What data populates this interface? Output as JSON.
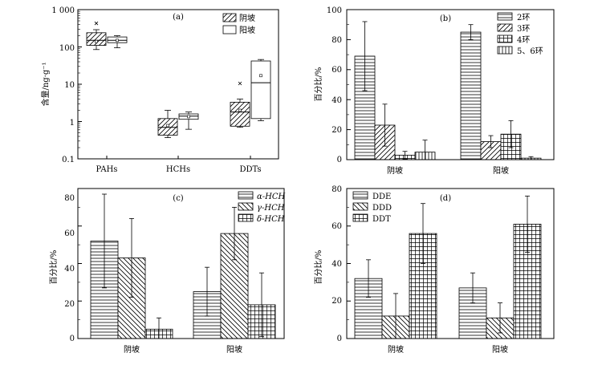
{
  "chart_data": [
    {
      "id": "a",
      "panel_label": "(a)",
      "type": "box",
      "ylabel": "含量/ng·g⁻¹",
      "yscale": "log",
      "ylim": [
        0.1,
        1000
      ],
      "yticks": [
        "1 000",
        "100",
        "10",
        "1",
        "0.1"
      ],
      "categories": [
        "PAHs",
        "HCHs",
        "DDTs"
      ],
      "legend": [
        "阴坡",
        "阳坡"
      ],
      "legend_position": "top-right",
      "series": [
        {
          "name": "阴坡",
          "boxes": [
            {
              "whisker_low": 85,
              "q1": 110,
              "median": 150,
              "q3": 240,
              "whisker_high": 290,
              "mean": 140,
              "outliers": [
                430
              ]
            },
            {
              "whisker_low": 0.37,
              "q1": 0.43,
              "median": 0.7,
              "q3": 1.2,
              "whisker_high": 2.0,
              "mean": 0.78,
              "outliers": []
            },
            {
              "whisker_low": 0.7,
              "q1": 0.75,
              "median": 1.8,
              "q3": 3.3,
              "whisker_high": 4.0,
              "mean": 2.0,
              "outliers": [
                10.5
              ]
            }
          ]
        },
        {
          "name": "阳坡",
          "boxes": [
            {
              "whisker_low": 95,
              "q1": 130,
              "median": 150,
              "q3": 185,
              "whisker_high": 200,
              "mean": 150,
              "outliers": []
            },
            {
              "whisker_low": 0.62,
              "q1": 1.15,
              "median": 1.4,
              "q3": 1.6,
              "whisker_high": 1.8,
              "mean": 1.35,
              "outliers": []
            },
            {
              "whisker_low": 1.05,
              "q1": 1.2,
              "median": 11,
              "q3": 42,
              "whisker_high": 46,
              "mean": 17,
              "outliers": []
            }
          ]
        }
      ]
    },
    {
      "id": "b",
      "panel_label": "(b)",
      "type": "bar",
      "ylabel": "百分比/%",
      "ylim": [
        0,
        100
      ],
      "yticks": [
        "0",
        "20",
        "40",
        "60",
        "80",
        "100"
      ],
      "categories": [
        "阴坡",
        "阳坡"
      ],
      "legend_position": "top-right",
      "series": [
        {
          "name": "2环",
          "values": [
            69,
            85
          ],
          "errors": [
            23,
            5
          ]
        },
        {
          "name": "3环",
          "values": [
            23,
            12
          ],
          "errors": [
            14,
            4
          ]
        },
        {
          "name": "4环",
          "values": [
            3,
            17
          ],
          "errors": [
            2.5,
            9
          ]
        },
        {
          "name": "5、6环",
          "values": [
            5,
            1
          ],
          "errors": [
            8,
            1
          ]
        }
      ]
    },
    {
      "id": "c",
      "panel_label": "(c)",
      "type": "bar",
      "ylabel": "百分比/%",
      "ylim": [
        0,
        80
      ],
      "yticks": [
        "0",
        "20",
        "40",
        "60",
        "80"
      ],
      "categories": [
        "阴坡",
        "阳坡"
      ],
      "legend_position": "top-right",
      "series": [
        {
          "name": "α-HCH",
          "values": [
            52,
            25
          ],
          "errors": [
            25,
            13
          ]
        },
        {
          "name": "γ-HCH",
          "values": [
            43,
            56
          ],
          "errors": [
            21,
            14
          ]
        },
        {
          "name": "δ-HCH",
          "values": [
            5,
            18
          ],
          "errors": [
            6,
            17
          ]
        }
      ]
    },
    {
      "id": "d",
      "panel_label": "(d)",
      "type": "bar",
      "ylabel": "百分比/%",
      "ylim": [
        0,
        80
      ],
      "yticks": [
        "0",
        "20",
        "40",
        "60",
        "80"
      ],
      "categories": [
        "阴坡",
        "阳坡"
      ],
      "legend_position": "top-left",
      "series": [
        {
          "name": "DDE",
          "values": [
            32,
            27
          ],
          "errors": [
            10,
            8
          ]
        },
        {
          "name": "DDD",
          "values": [
            12,
            11
          ],
          "errors": [
            12,
            8
          ]
        },
        {
          "name": "DDT",
          "values": [
            56,
            61
          ],
          "errors": [
            16,
            15
          ]
        }
      ]
    }
  ]
}
